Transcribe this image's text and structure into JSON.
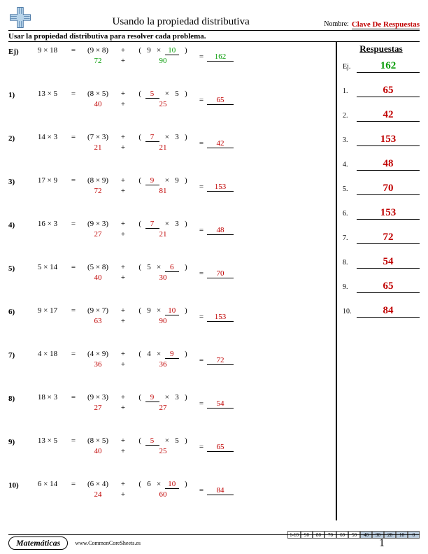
{
  "header": {
    "title": "Usando la propiedad distributiva",
    "name_label": "Nombre:",
    "name_value": "Clave De Respuestas"
  },
  "instructions": "Usar la propiedad distributiva para resolver cada problema.",
  "answers_title": "Respuestas",
  "example_label": "Ej)",
  "example_ans_label": "Ej.",
  "problems": [
    {
      "n": "Ej)",
      "a": 9,
      "b": 18,
      "c": 9,
      "d": 8,
      "e": 9,
      "f": 10,
      "blank": "f",
      "p1": 72,
      "p2": 90,
      "ans": 162,
      "is_example": true
    },
    {
      "n": "1)",
      "a": 13,
      "b": 5,
      "c": 8,
      "d": 5,
      "e": 5,
      "f": 5,
      "blank": "e",
      "p1": 40,
      "p2": 25,
      "ans": 65,
      "is_example": false
    },
    {
      "n": "2)",
      "a": 14,
      "b": 3,
      "c": 7,
      "d": 3,
      "e": 7,
      "f": 3,
      "blank": "e",
      "p1": 21,
      "p2": 21,
      "ans": 42,
      "is_example": false
    },
    {
      "n": "3)",
      "a": 17,
      "b": 9,
      "c": 8,
      "d": 9,
      "e": 9,
      "f": 9,
      "blank": "e",
      "p1": 72,
      "p2": 81,
      "ans": 153,
      "is_example": false
    },
    {
      "n": "4)",
      "a": 16,
      "b": 3,
      "c": 9,
      "d": 3,
      "e": 7,
      "f": 3,
      "blank": "e",
      "p1": 27,
      "p2": 21,
      "ans": 48,
      "is_example": false
    },
    {
      "n": "5)",
      "a": 5,
      "b": 14,
      "c": 5,
      "d": 8,
      "e": 5,
      "f": 6,
      "blank": "f",
      "p1": 40,
      "p2": 30,
      "ans": 70,
      "is_example": false
    },
    {
      "n": "6)",
      "a": 9,
      "b": 17,
      "c": 9,
      "d": 7,
      "e": 9,
      "f": 10,
      "blank": "f",
      "p1": 63,
      "p2": 90,
      "ans": 153,
      "is_example": false
    },
    {
      "n": "7)",
      "a": 4,
      "b": 18,
      "c": 4,
      "d": 9,
      "e": 4,
      "f": 9,
      "blank": "f",
      "p1": 36,
      "p2": 36,
      "ans": 72,
      "is_example": false
    },
    {
      "n": "8)",
      "a": 18,
      "b": 3,
      "c": 9,
      "d": 3,
      "e": 9,
      "f": 3,
      "blank": "e",
      "p1": 27,
      "p2": 27,
      "ans": 54,
      "is_example": false
    },
    {
      "n": "9)",
      "a": 13,
      "b": 5,
      "c": 8,
      "d": 5,
      "e": 5,
      "f": 5,
      "blank": "e",
      "p1": 40,
      "p2": 25,
      "ans": 65,
      "is_example": false
    },
    {
      "n": "10)",
      "a": 6,
      "b": 14,
      "c": 6,
      "d": 4,
      "e": 6,
      "f": 10,
      "blank": "f",
      "p1": 24,
      "p2": 60,
      "ans": 84,
      "is_example": false
    }
  ],
  "answers": [
    {
      "label": "Ej.",
      "val": 162,
      "example": true
    },
    {
      "label": "1.",
      "val": 65,
      "example": false
    },
    {
      "label": "2.",
      "val": 42,
      "example": false
    },
    {
      "label": "3.",
      "val": 153,
      "example": false
    },
    {
      "label": "4.",
      "val": 48,
      "example": false
    },
    {
      "label": "5.",
      "val": 70,
      "example": false
    },
    {
      "label": "6.",
      "val": 153,
      "example": false
    },
    {
      "label": "7.",
      "val": 72,
      "example": false
    },
    {
      "label": "8.",
      "val": 54,
      "example": false
    },
    {
      "label": "9.",
      "val": 65,
      "example": false
    },
    {
      "label": "10.",
      "val": 84,
      "example": false
    }
  ],
  "footer": {
    "subject": "Matemáticas",
    "site": "www.CommonCoreSheets.es",
    "page": "1"
  },
  "score": {
    "label": "1-10",
    "cells": [
      {
        "v": "90",
        "shade": false
      },
      {
        "v": "80",
        "shade": false
      },
      {
        "v": "70",
        "shade": false
      },
      {
        "v": "60",
        "shade": false
      },
      {
        "v": "50",
        "shade": false
      },
      {
        "v": "40",
        "shade": true
      },
      {
        "v": "30",
        "shade": true
      },
      {
        "v": "20",
        "shade": true
      },
      {
        "v": "10",
        "shade": true
      },
      {
        "v": "0",
        "shade": true
      }
    ]
  },
  "colors": {
    "answer_red": "#c00000",
    "example_green": "#009a00"
  }
}
